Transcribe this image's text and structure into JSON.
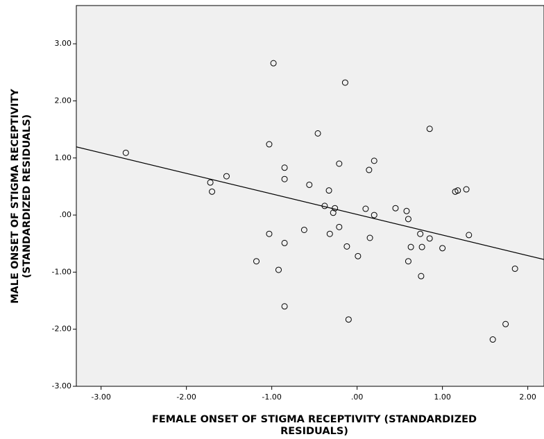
{
  "chart_data": {
    "type": "scatter",
    "x_label": [
      "FEMALE ONSET OF STIGMA RECEPTIVITY (STANDARDIZED",
      "RESIDUALS)"
    ],
    "y_label": [
      "MALE ONSET OF STIGMA RECEPTIVITY",
      "(STANDARDIZED RESIDUALS)"
    ],
    "xlim": [
      -3.29,
      2.19
    ],
    "ylim": [
      -3.0,
      3.67
    ],
    "xticks": [
      {
        "value": -3,
        "label": "-3.00"
      },
      {
        "value": -2,
        "label": "-2.00"
      },
      {
        "value": -1,
        "label": "-1.00"
      },
      {
        "value": 0,
        "label": ".00"
      },
      {
        "value": 1,
        "label": "1.00"
      },
      {
        "value": 2,
        "label": "2.00"
      }
    ],
    "yticks": [
      {
        "value": -3,
        "label": "-3.00"
      },
      {
        "value": -2,
        "label": "-2.00"
      },
      {
        "value": -1,
        "label": "-1.00"
      },
      {
        "value": 0,
        "label": ".00"
      },
      {
        "value": 1,
        "label": "1.00"
      },
      {
        "value": 2,
        "label": "2.00"
      },
      {
        "value": 3,
        "label": "3.00"
      }
    ],
    "grid": false,
    "background": "#f0f0f0",
    "color": "#000000",
    "regression": {
      "slope": -0.36,
      "intercept": 0.01
    },
    "x": [
      -2.71,
      -1.72,
      -1.7,
      -1.53,
      -1.18,
      -1.03,
      -1.03,
      -0.98,
      -0.92,
      -0.85,
      -0.85,
      -0.85,
      -0.85,
      -0.62,
      -0.56,
      -0.46,
      -0.38,
      -0.33,
      -0.32,
      -0.28,
      -0.26,
      -0.21,
      -0.21,
      -0.14,
      -0.12,
      -0.1,
      0.01,
      0.1,
      0.14,
      0.15,
      0.2,
      0.2,
      0.45,
      0.58,
      0.6,
      0.6,
      0.63,
      0.74,
      0.75,
      0.76,
      0.85,
      0.85,
      1.0,
      1.15,
      1.18,
      1.28,
      1.31,
      1.59,
      1.74,
      1.85
    ],
    "values": [
      1.09,
      0.57,
      0.41,
      0.68,
      -0.81,
      1.24,
      -0.33,
      2.66,
      -0.96,
      0.83,
      0.63,
      -0.49,
      -1.6,
      -0.26,
      0.53,
      1.43,
      0.16,
      0.43,
      -0.33,
      0.04,
      0.12,
      0.9,
      -0.21,
      2.32,
      -0.55,
      -1.83,
      -0.72,
      0.11,
      0.79,
      -0.4,
      0.95,
      0.0,
      0.12,
      0.07,
      -0.07,
      -0.81,
      -0.56,
      -0.33,
      -1.07,
      -0.56,
      1.51,
      -0.41,
      -0.58,
      0.41,
      0.43,
      0.45,
      -0.35,
      -2.18,
      -1.91,
      -0.94
    ]
  }
}
